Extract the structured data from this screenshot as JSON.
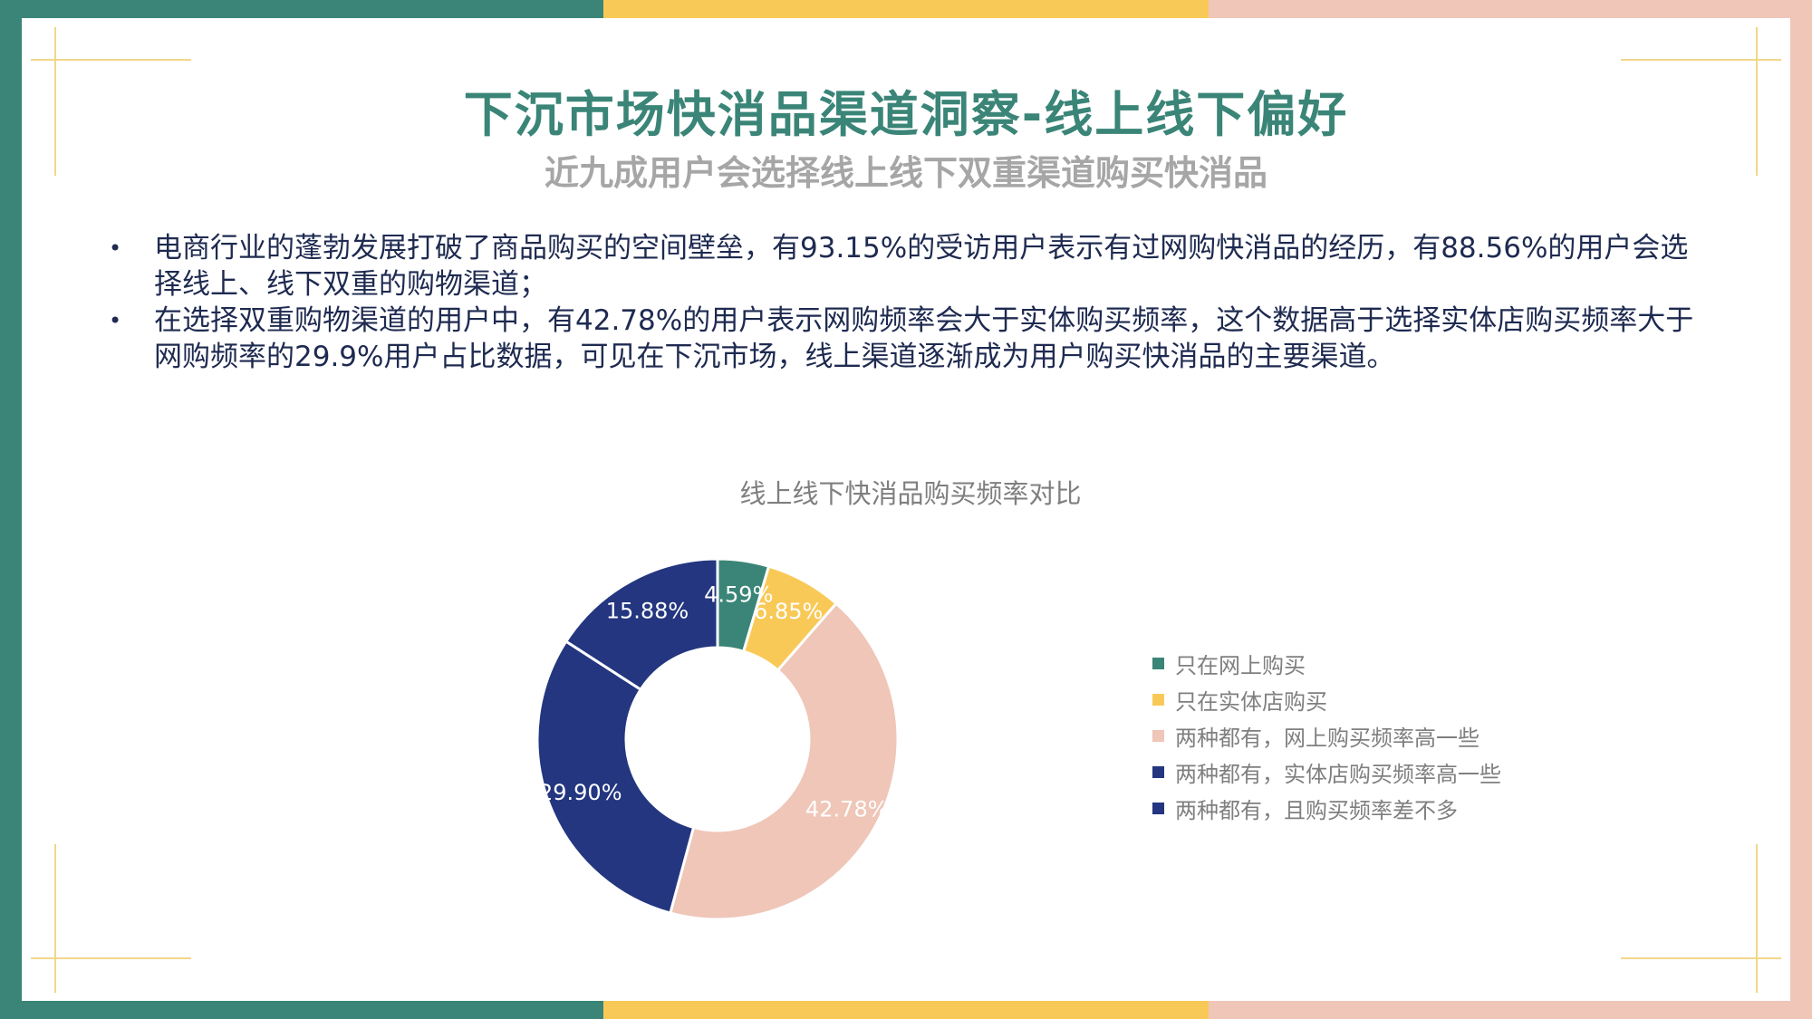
{
  "page": {
    "title": "下沉市场快消品渠道洞察-线上线下偏好",
    "subtitle": "近九成用户会选择线上线下双重渠道购买快消品",
    "bullets": [
      "电商行业的蓬勃发展打破了商品购买的空间壁垒，有93.15%的受访用户表示有过网购快消品的经历，有88.56%的用户会选择线上、线下双重的购物渠道；",
      "在选择双重购物渠道的用户中，有42.78%的用户表示网购频率会大于实体购买频率，这个数据高于选择实体店购买频率大于网购频率的29.9%用户占比数据，可见在下沉市场，线上渠道逐渐成为用户购买快消品的主要渠道。"
    ]
  },
  "colors": {
    "green": "#3a8577",
    "yellow": "#f9c957",
    "pink": "#efc6b8",
    "navy": "#23367f",
    "corner": "#f1d78a"
  },
  "chart_data": {
    "type": "pie",
    "donut": true,
    "title": "线上线下快消品购买频率对比",
    "legend_position": "right",
    "categories": [
      "只在网上购买",
      "只在实体店购买",
      "两种都有，网上购买频率高一些",
      "两种都有，实体店购买频率高一些",
      "两种都有，且购买频率差不多"
    ],
    "values": [
      4.59,
      6.85,
      42.78,
      29.9,
      15.88
    ],
    "labels": [
      "4.59%",
      "6.85%",
      "42.78%",
      "29.90%",
      "15.88%"
    ],
    "colors": [
      "#3a8577",
      "#f9c957",
      "#efc6b8",
      "#23367f",
      "#23367f"
    ]
  }
}
